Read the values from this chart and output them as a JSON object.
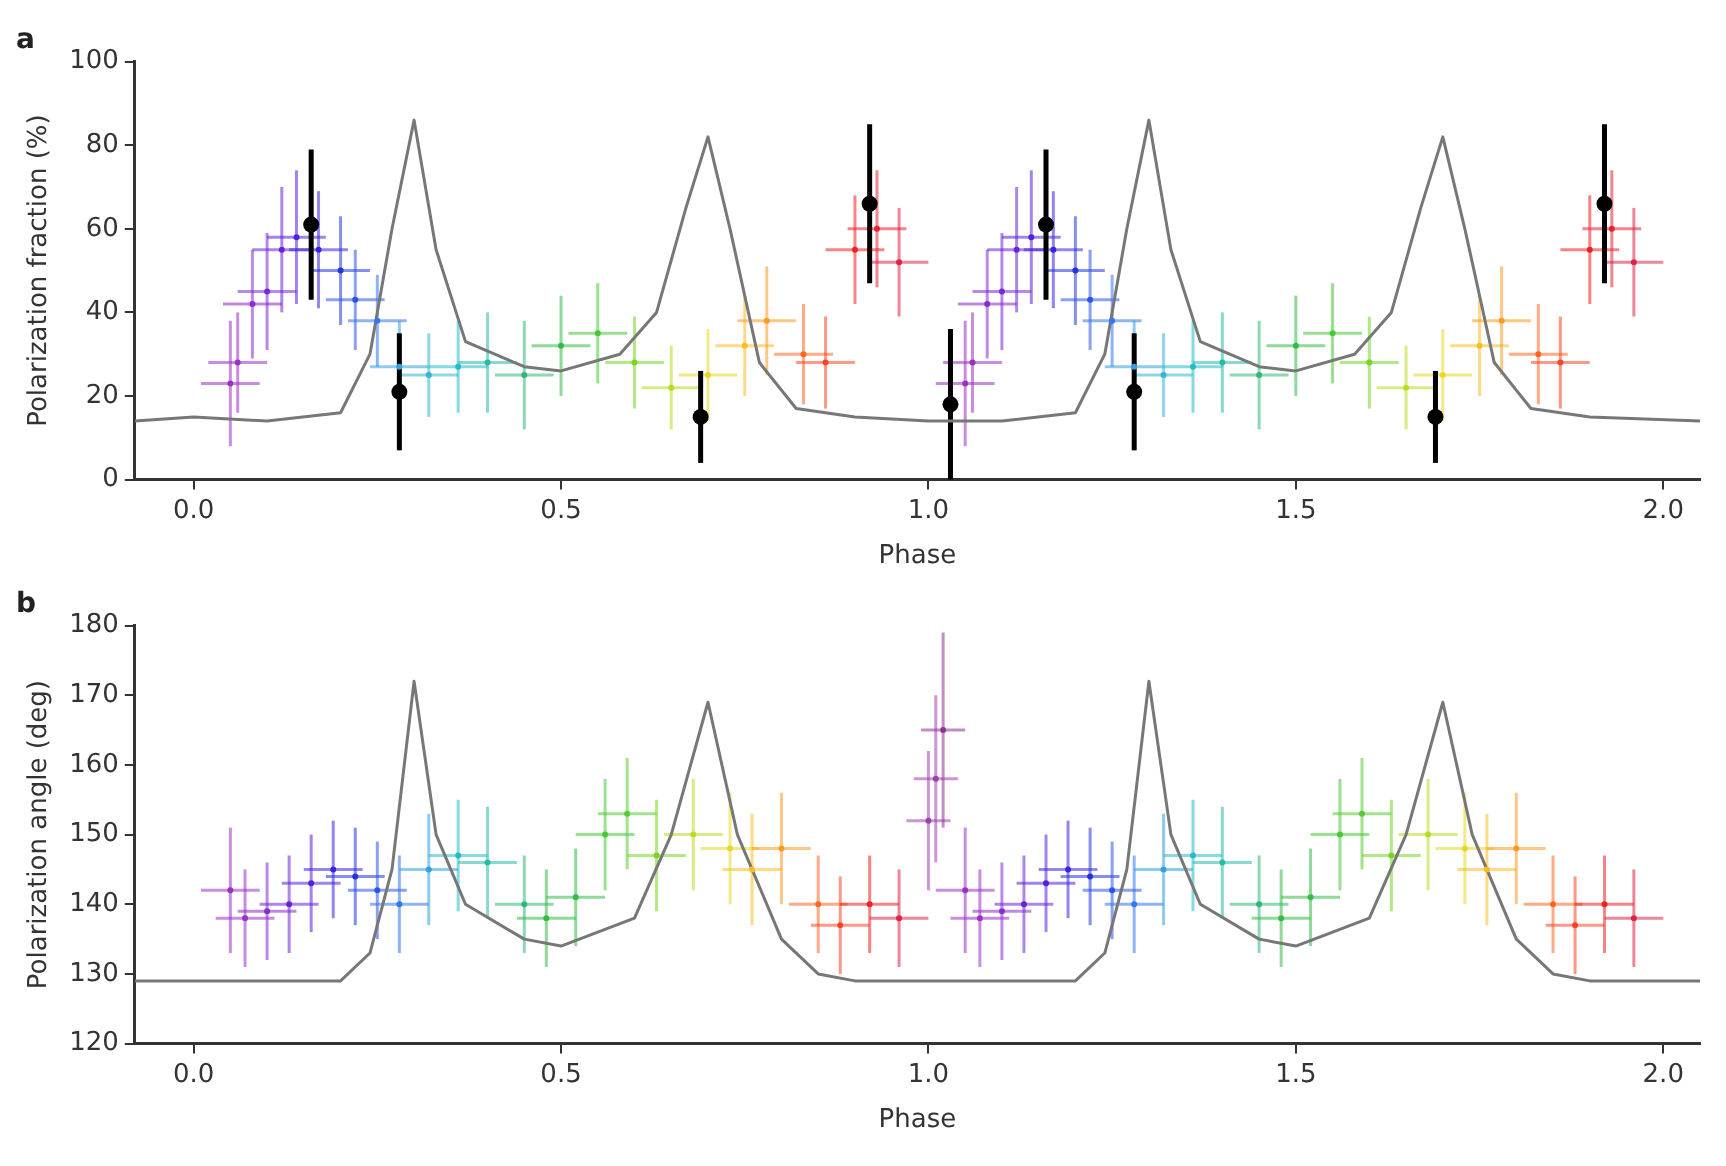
{
  "chart_data": [
    {
      "type": "scatter",
      "title": "a",
      "xlabel": "Phase",
      "ylabel": "Polarization fraction (%)",
      "xlim": [
        -0.08,
        2.05
      ],
      "ylim": [
        0,
        100
      ],
      "xticks": [
        {
          "value": 0,
          "label": "0.0"
        },
        {
          "value": 0.5,
          "label": "0.5"
        },
        {
          "value": 1,
          "label": "1.0"
        },
        {
          "value": 1.5,
          "label": "1.5"
        },
        {
          "value": 2,
          "label": "2.0"
        }
      ],
      "yticks": [
        0,
        20,
        40,
        60,
        80,
        100
      ],
      "grid": false,
      "legend": false,
      "marker": "circle",
      "series": [
        {
          "type": "scatter",
          "x": [
            0.05,
            0.06,
            0.08,
            0.1,
            0.12,
            0.14,
            0.17,
            0.2,
            0.22,
            0.25,
            0.28,
            0.32,
            0.36,
            0.4,
            0.45,
            0.5,
            0.55,
            0.6,
            0.65,
            0.7,
            0.75,
            0.78,
            0.83,
            0.86,
            0.9,
            0.93,
            0.96,
            1.05,
            1.06,
            1.08,
            1.1,
            1.12,
            1.14,
            1.17,
            1.2,
            1.22,
            1.25,
            1.28,
            1.32,
            1.36,
            1.4,
            1.45,
            1.5,
            1.55,
            1.6,
            1.65,
            1.7,
            1.75,
            1.78,
            1.83,
            1.86,
            1.9,
            1.93,
            1.96
          ],
          "values": [
            23,
            28,
            42,
            45,
            55,
            58,
            55,
            50,
            43,
            38,
            27,
            25,
            27,
            28,
            25,
            32,
            35,
            28,
            22,
            25,
            32,
            38,
            30,
            28,
            55,
            60,
            52,
            23,
            28,
            42,
            45,
            55,
            58,
            55,
            50,
            43,
            38,
            27,
            25,
            27,
            28,
            25,
            32,
            35,
            28,
            22,
            25,
            32,
            38,
            30,
            28,
            55,
            60,
            52
          ],
          "errors": [
            15,
            12,
            13,
            14,
            15,
            16,
            14,
            13,
            12,
            11,
            11,
            10,
            11,
            12,
            13,
            12,
            12,
            11,
            10,
            11,
            12,
            13,
            12,
            11,
            13,
            14,
            13,
            15,
            12,
            13,
            14,
            15,
            16,
            14,
            13,
            12,
            11,
            11,
            10,
            11,
            12,
            13,
            12,
            12,
            11,
            10,
            11,
            12,
            13,
            12,
            11,
            13,
            14,
            13
          ],
          "xerrors": [
            0.04,
            0.04,
            0.04,
            0.04,
            0.04,
            0.04,
            0.04,
            0.04,
            0.04,
            0.04,
            0.04,
            0.04,
            0.04,
            0.04,
            0.04,
            0.04,
            0.04,
            0.04,
            0.04,
            0.04,
            0.04,
            0.04,
            0.04,
            0.04,
            0.04,
            0.04,
            0.04,
            0.04,
            0.04,
            0.04,
            0.04,
            0.04,
            0.04,
            0.04,
            0.04,
            0.04,
            0.04,
            0.04,
            0.04,
            0.04,
            0.04,
            0.04,
            0.04,
            0.04,
            0.04,
            0.04,
            0.04,
            0.04,
            0.04,
            0.04,
            0.04,
            0.04,
            0.04,
            0.04
          ],
          "colors": [
            "#9b30c8",
            "#9b30c8",
            "#8a2ad0",
            "#7a28d4",
            "#6a22d8",
            "#5520dc",
            "#3a22e0",
            "#2233e0",
            "#2a55e6",
            "#3377ee",
            "#33a0e0",
            "#33b4dd",
            "#22bcc8",
            "#22bca8",
            "#30b878",
            "#33bb44",
            "#44c833",
            "#77d622",
            "#b8dc22",
            "#e8d822",
            "#ffbb22",
            "#ff9922",
            "#ff6622",
            "#ff4422",
            "#ee2222",
            "#e82233",
            "#dd2244",
            "#9b30c8",
            "#9b30c8",
            "#8a2ad0",
            "#7a28d4",
            "#6a22d8",
            "#5520dc",
            "#3a22e0",
            "#2233e0",
            "#2a55e6",
            "#3377ee",
            "#33a0e0",
            "#33b4dd",
            "#22bcc8",
            "#22bca8",
            "#30b878",
            "#33bb44",
            "#44c833",
            "#77d622",
            "#b8dc22",
            "#e8d822",
            "#ffbb22",
            "#ff9922",
            "#ff6622",
            "#ff4422",
            "#ee2222",
            "#e82233",
            "#dd2244"
          ]
        },
        {
          "type": "scatter",
          "color": "#000000",
          "x": [
            0.16,
            0.28,
            0.69,
            0.92,
            1.03,
            1.16,
            1.28,
            1.69,
            1.92
          ],
          "values": [
            61,
            21,
            15,
            66,
            18,
            61,
            21,
            15,
            66
          ],
          "errors": [
            18,
            14,
            11,
            19,
            18,
            18,
            14,
            11,
            19
          ]
        },
        {
          "type": "line",
          "color": "#777777",
          "marker": "none",
          "x": [
            -0.08,
            0.0,
            0.1,
            0.2,
            0.24,
            0.27,
            0.3,
            0.33,
            0.37,
            0.45,
            0.5,
            0.58,
            0.63,
            0.67,
            0.7,
            0.73,
            0.77,
            0.82,
            0.9,
            1.0,
            1.1,
            1.2,
            1.24,
            1.27,
            1.3,
            1.33,
            1.37,
            1.45,
            1.5,
            1.58,
            1.63,
            1.67,
            1.7,
            1.73,
            1.77,
            1.82,
            1.9,
            2.05
          ],
          "values": [
            14,
            15,
            14,
            16,
            30,
            60,
            86,
            55,
            33,
            27,
            26,
            30,
            40,
            65,
            82,
            60,
            28,
            17,
            15,
            14,
            14,
            16,
            30,
            60,
            86,
            55,
            33,
            27,
            26,
            30,
            40,
            65,
            82,
            60,
            28,
            17,
            15,
            14
          ]
        }
      ]
    },
    {
      "type": "scatter",
      "title": "b",
      "xlabel": "Phase",
      "ylabel": "Polarization angle (deg)",
      "xlim": [
        -0.08,
        2.05
      ],
      "ylim": [
        120,
        180
      ],
      "xticks": [
        {
          "value": 0,
          "label": "0.0"
        },
        {
          "value": 0.5,
          "label": "0.5"
        },
        {
          "value": 1,
          "label": "1.0"
        },
        {
          "value": 1.5,
          "label": "1.5"
        },
        {
          "value": 2,
          "label": "2.0"
        }
      ],
      "yticks": [
        120,
        130,
        140,
        150,
        160,
        170,
        180
      ],
      "grid": false,
      "legend": false,
      "marker": "circle",
      "series": [
        {
          "type": "scatter",
          "x": [
            0.05,
            0.07,
            0.1,
            0.13,
            0.16,
            0.19,
            0.22,
            0.25,
            0.28,
            0.32,
            0.36,
            0.4,
            0.45,
            0.48,
            0.52,
            0.56,
            0.59,
            0.63,
            0.68,
            0.73,
            0.76,
            0.8,
            0.85,
            0.88,
            0.92,
            0.96,
            1.0,
            1.01,
            1.02,
            1.05,
            1.07,
            1.1,
            1.13,
            1.16,
            1.19,
            1.22,
            1.25,
            1.28,
            1.32,
            1.36,
            1.4,
            1.45,
            1.48,
            1.52,
            1.56,
            1.59,
            1.63,
            1.68,
            1.73,
            1.76,
            1.8,
            1.85,
            1.88,
            1.92,
            1.96
          ],
          "values": [
            142,
            138,
            139,
            140,
            143,
            145,
            144,
            142,
            140,
            145,
            147,
            146,
            140,
            138,
            141,
            150,
            153,
            147,
            150,
            148,
            145,
            148,
            140,
            137,
            140,
            138,
            152,
            158,
            165,
            142,
            138,
            139,
            140,
            143,
            145,
            144,
            142,
            140,
            145,
            147,
            146,
            140,
            138,
            141,
            150,
            153,
            147,
            150,
            148,
            145,
            148,
            140,
            137,
            140,
            138
          ],
          "errors": [
            9,
            7,
            7,
            7,
            7,
            7,
            7,
            7,
            7,
            8,
            8,
            8,
            7,
            7,
            7,
            8,
            8,
            8,
            8,
            8,
            8,
            8,
            7,
            7,
            7,
            7,
            10,
            12,
            14,
            9,
            7,
            7,
            7,
            7,
            7,
            7,
            7,
            7,
            8,
            8,
            8,
            7,
            7,
            7,
            8,
            8,
            8,
            8,
            8,
            8,
            8,
            7,
            7,
            7,
            7
          ],
          "xerrors": [
            0.04,
            0.04,
            0.04,
            0.04,
            0.04,
            0.04,
            0.04,
            0.04,
            0.04,
            0.04,
            0.04,
            0.04,
            0.04,
            0.04,
            0.04,
            0.04,
            0.04,
            0.04,
            0.04,
            0.04,
            0.04,
            0.04,
            0.04,
            0.04,
            0.04,
            0.04,
            0.03,
            0.03,
            0.03,
            0.04,
            0.04,
            0.04,
            0.04,
            0.04,
            0.04,
            0.04,
            0.04,
            0.04,
            0.04,
            0.04,
            0.04,
            0.04,
            0.04,
            0.04,
            0.04,
            0.04,
            0.04,
            0.04,
            0.04,
            0.04,
            0.04,
            0.04,
            0.04,
            0.04,
            0.04
          ],
          "colors": [
            "#9b30c8",
            "#9b30c8",
            "#8a2ad0",
            "#6a22d8",
            "#5520dc",
            "#3a22e0",
            "#2233e0",
            "#2a55e6",
            "#3377ee",
            "#33a0e0",
            "#22bcc8",
            "#22bca8",
            "#30b878",
            "#33bb44",
            "#33bb44",
            "#44c833",
            "#55cc33",
            "#77d622",
            "#b8dc22",
            "#e8d822",
            "#ffbb22",
            "#ff9922",
            "#ff6622",
            "#ff4422",
            "#ee2222",
            "#dd2244",
            "#a040b0",
            "#a040b0",
            "#903090",
            "#9b30c8",
            "#9b30c8",
            "#8a2ad0",
            "#6a22d8",
            "#5520dc",
            "#3a22e0",
            "#2233e0",
            "#2a55e6",
            "#3377ee",
            "#33a0e0",
            "#22bcc8",
            "#22bca8",
            "#30b878",
            "#33bb44",
            "#33bb44",
            "#44c833",
            "#55cc33",
            "#77d622",
            "#b8dc22",
            "#e8d822",
            "#ffbb22",
            "#ff9922",
            "#ff6622",
            "#ff4422",
            "#ee2222",
            "#dd2244"
          ]
        },
        {
          "type": "line",
          "color": "#777777",
          "marker": "none",
          "x": [
            -0.08,
            0.0,
            0.1,
            0.2,
            0.24,
            0.27,
            0.3,
            0.33,
            0.37,
            0.45,
            0.5,
            0.6,
            0.65,
            0.7,
            0.74,
            0.8,
            0.85,
            0.9,
            1.0,
            1.1,
            1.2,
            1.24,
            1.27,
            1.3,
            1.33,
            1.37,
            1.45,
            1.5,
            1.6,
            1.65,
            1.7,
            1.74,
            1.8,
            1.85,
            1.9,
            2.05
          ],
          "values": [
            129,
            129,
            129,
            129,
            133,
            145,
            172,
            150,
            140,
            135,
            134,
            138,
            150,
            169,
            150,
            135,
            130,
            129,
            129,
            129,
            129,
            133,
            145,
            172,
            150,
            140,
            135,
            134,
            138,
            150,
            169,
            150,
            135,
            130,
            129,
            129
          ]
        }
      ]
    }
  ]
}
